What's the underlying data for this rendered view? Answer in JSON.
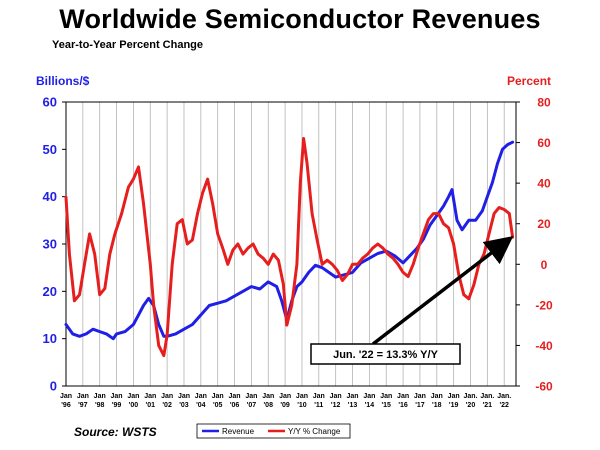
{
  "chart_data": {
    "type": "line",
    "title": "Worldwide Semiconductor Revenues",
    "subtitle": "Year-to-Year Percent Change",
    "left_axis_label": "Billions/$",
    "right_axis_label": "Percent",
    "source": "Source: WSTS",
    "left_ylim": [
      0,
      60
    ],
    "left_ticks": [
      "0",
      "10",
      "20",
      "30",
      "40",
      "50",
      "60"
    ],
    "right_ylim": [
      -60,
      80
    ],
    "right_ticks": [
      "-60",
      "-40",
      "-20",
      "0",
      "20",
      "40",
      "60",
      "80"
    ],
    "x_range": [
      1996.0,
      2022.7
    ],
    "x_tick_labels": [
      {
        "month": "Jan",
        "year": "'96"
      },
      {
        "month": "Jan",
        "year": "'97"
      },
      {
        "month": "Jan",
        "year": "'98"
      },
      {
        "month": "Jan",
        "year": "'99"
      },
      {
        "month": "Jan",
        "year": "'00"
      },
      {
        "month": "Jan",
        "year": "'01"
      },
      {
        "month": "Jan",
        "year": "'02"
      },
      {
        "month": "Jan",
        "year": "'03"
      },
      {
        "month": "Jan",
        "year": "'04"
      },
      {
        "month": "Jan",
        "year": "'05"
      },
      {
        "month": "Jan",
        "year": "'06"
      },
      {
        "month": "Jan",
        "year": "'07"
      },
      {
        "month": "Jan",
        "year": "'08"
      },
      {
        "month": "Jan",
        "year": "'09"
      },
      {
        "month": "Jan",
        "year": "'10"
      },
      {
        "month": "Jan",
        "year": "'11"
      },
      {
        "month": "Jan",
        "year": "'12"
      },
      {
        "month": "Jan",
        "year": "'13"
      },
      {
        "month": "Jan",
        "year": "'14"
      },
      {
        "month": "Jan",
        "year": "'15"
      },
      {
        "month": "Jan",
        "year": "'16"
      },
      {
        "month": "Jan",
        "year": "'17"
      },
      {
        "month": "Jan",
        "year": "'18"
      },
      {
        "month": "Jan",
        "year": "'19"
      },
      {
        "month": "Jan.",
        "year": "'20"
      },
      {
        "month": "Jan.",
        "year": "'21"
      },
      {
        "month": "Jan.",
        "year": "'22"
      }
    ],
    "grid": "vertical",
    "legend_position": "bottom-center",
    "series": [
      {
        "name": "Revenue",
        "axis": "left",
        "color": "#1f1fe6",
        "x": [
          1996.0,
          1996.4,
          1996.8,
          1997.2,
          1997.6,
          1998.0,
          1998.4,
          1998.8,
          1999.0,
          1999.5,
          2000.0,
          2000.3,
          2000.6,
          2000.9,
          2001.2,
          2001.5,
          2001.8,
          2002.0,
          2002.5,
          2003.0,
          2003.5,
          2004.0,
          2004.5,
          2005.0,
          2005.5,
          2006.0,
          2006.5,
          2007.0,
          2007.5,
          2008.0,
          2008.5,
          2008.8,
          2009.1,
          2009.4,
          2009.7,
          2010.0,
          2010.4,
          2010.8,
          2011.2,
          2011.6,
          2012.0,
          2012.5,
          2013.0,
          2013.5,
          2014.0,
          2014.5,
          2015.0,
          2015.5,
          2016.0,
          2016.4,
          2016.8,
          2017.2,
          2017.6,
          2018.0,
          2018.4,
          2018.7,
          2018.9,
          2019.2,
          2019.5,
          2019.9,
          2020.3,
          2020.7,
          2021.0,
          2021.3,
          2021.6,
          2021.9,
          2022.2,
          2022.5
        ],
        "values": [
          13,
          11,
          10.5,
          11,
          12,
          11.5,
          11,
          10,
          11,
          11.5,
          13,
          15,
          17,
          18.5,
          17,
          13,
          10.5,
          10.5,
          11,
          12,
          13,
          15,
          17,
          17.5,
          18,
          19,
          20,
          21,
          20.5,
          22,
          21,
          18,
          14,
          18,
          21,
          22,
          24,
          25.5,
          25,
          24,
          23,
          23.5,
          24,
          26,
          27,
          28,
          28.5,
          27.5,
          26,
          27.5,
          29,
          31,
          34,
          36,
          38,
          40,
          41.5,
          35,
          33,
          35,
          35,
          37,
          40,
          43,
          47,
          50,
          51,
          51.5
        ]
      },
      {
        "name": "Y/Y % Change",
        "axis": "right",
        "color": "#e61e1e",
        "x": [
          1996.0,
          1996.2,
          1996.5,
          1996.8,
          1997.1,
          1997.4,
          1997.7,
          1998.0,
          1998.3,
          1998.6,
          1998.9,
          1999.3,
          1999.7,
          2000.0,
          2000.3,
          2000.6,
          2000.8,
          2001.0,
          2001.2,
          2001.5,
          2001.8,
          2002.0,
          2002.3,
          2002.6,
          2002.9,
          2003.2,
          2003.5,
          2003.8,
          2004.1,
          2004.4,
          2004.7,
          2005.0,
          2005.3,
          2005.6,
          2005.9,
          2006.2,
          2006.5,
          2006.8,
          2007.1,
          2007.4,
          2007.7,
          2008.0,
          2008.3,
          2008.6,
          2008.9,
          2009.1,
          2009.4,
          2009.7,
          2009.9,
          2010.1,
          2010.3,
          2010.6,
          2010.9,
          2011.2,
          2011.5,
          2011.8,
          2012.1,
          2012.4,
          2012.7,
          2013.0,
          2013.3,
          2013.6,
          2013.9,
          2014.2,
          2014.5,
          2014.8,
          2015.1,
          2015.4,
          2015.7,
          2016.0,
          2016.3,
          2016.6,
          2016.9,
          2017.2,
          2017.5,
          2017.8,
          2018.1,
          2018.4,
          2018.7,
          2019.0,
          2019.3,
          2019.6,
          2019.9,
          2020.2,
          2020.5,
          2020.8,
          2021.1,
          2021.4,
          2021.7,
          2022.0,
          2022.3,
          2022.5
        ],
        "values": [
          33,
          5,
          -18,
          -15,
          0,
          15,
          5,
          -15,
          -12,
          5,
          15,
          25,
          38,
          42,
          48,
          30,
          15,
          0,
          -20,
          -40,
          -45,
          -35,
          0,
          20,
          22,
          10,
          12,
          25,
          35,
          42,
          30,
          15,
          8,
          0,
          7,
          10,
          5,
          8,
          10,
          5,
          3,
          0,
          5,
          2,
          -10,
          -30,
          -20,
          0,
          40,
          62,
          50,
          25,
          12,
          0,
          2,
          0,
          -3,
          -8,
          -5,
          0,
          0,
          3,
          5,
          8,
          10,
          8,
          5,
          3,
          0,
          -4,
          -6,
          0,
          8,
          15,
          22,
          25,
          25,
          20,
          18,
          10,
          -5,
          -15,
          -17,
          -10,
          0,
          5,
          15,
          25,
          28,
          27,
          25,
          13.3
        ]
      }
    ],
    "annotation": {
      "text": "Jun. '22 = 13.3% Y/Y",
      "target_x": 2022.45,
      "target_value": 13.3,
      "target_axis": "right"
    }
  }
}
